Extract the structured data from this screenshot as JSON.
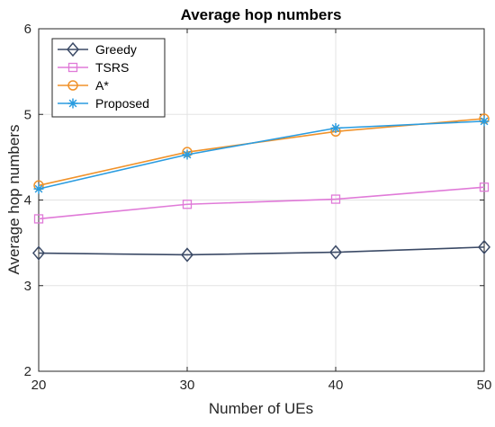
{
  "chart_data": {
    "type": "line",
    "title": "Average hop numbers",
    "xlabel": "Number of UEs",
    "ylabel": "Average hop numbers",
    "x": [
      20,
      30,
      40,
      50
    ],
    "xlim": [
      20,
      50
    ],
    "ylim": [
      2,
      6
    ],
    "xticks": [
      "20",
      "30",
      "40",
      "50"
    ],
    "yticks": [
      "2",
      "3",
      "4",
      "5",
      "6"
    ],
    "grid": true,
    "legend_position": "top-left",
    "series": [
      {
        "name": "Greedy",
        "values": [
          3.38,
          3.36,
          3.39,
          3.45
        ],
        "color": "#3b4a66",
        "marker": "diamond"
      },
      {
        "name": "TSRS",
        "values": [
          3.78,
          3.95,
          4.01,
          4.15
        ],
        "color": "#e07ad8",
        "marker": "square"
      },
      {
        "name": "A*",
        "values": [
          4.17,
          4.56,
          4.8,
          4.95
        ],
        "color": "#f0922a",
        "marker": "circle"
      },
      {
        "name": "Proposed",
        "values": [
          4.13,
          4.53,
          4.84,
          4.92
        ],
        "color": "#2a9ce0",
        "marker": "asterisk"
      }
    ]
  }
}
